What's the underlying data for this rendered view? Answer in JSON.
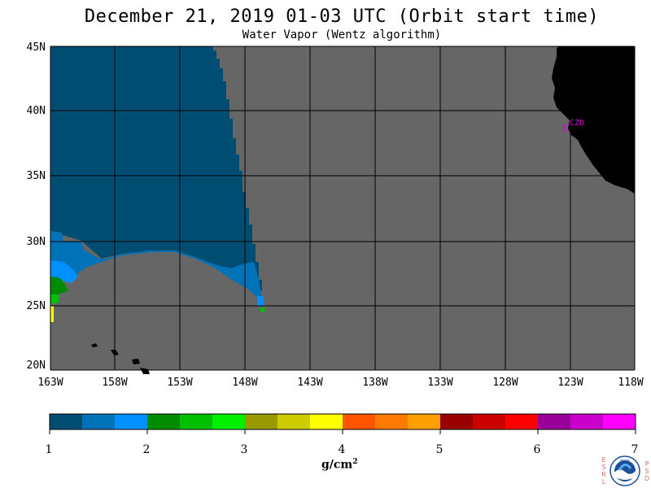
{
  "header": {
    "title": "December 21, 2019  01-03 UTC  (Orbit start time)",
    "subtitle": "Water Vapor (Wentz algorithm)"
  },
  "map": {
    "lat_labels": [
      "45N",
      "40N",
      "35N",
      "30N",
      "25N",
      "20N"
    ],
    "lon_labels": [
      "163W",
      "158W",
      "153W",
      "148W",
      "143W",
      "138W",
      "133W",
      "128W",
      "123W",
      "118W"
    ],
    "lat_range": [
      20,
      45
    ],
    "lon_range": [
      -163,
      -118
    ],
    "station": "CZD",
    "colors": {
      "no_data": "#666666",
      "land": "#000000",
      "grid": "#000000",
      "station": "#e000e0"
    }
  },
  "colorbar": {
    "tick_labels": [
      "1",
      "2",
      "3",
      "4",
      "5",
      "6",
      "7"
    ],
    "units_base": "g/cm",
    "units_exp": "2",
    "colors": [
      "#004d73",
      "#0073b8",
      "#0090ff",
      "#008c00",
      "#00c000",
      "#00f000",
      "#999900",
      "#cccc00",
      "#ffff00",
      "#ff5500",
      "#ff7a00",
      "#ffa000",
      "#990000",
      "#cc0000",
      "#ff0000",
      "#990099",
      "#cc00cc",
      "#ff00ff"
    ]
  },
  "logo": {
    "left_letters": [
      "E",
      "S",
      "R",
      "L"
    ],
    "right_letters": [
      "P",
      "S",
      "D"
    ],
    "badge": "NOAA"
  }
}
